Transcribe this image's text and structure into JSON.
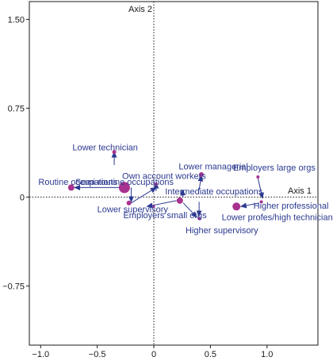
{
  "chart_data": {
    "type": "scatter",
    "title": "",
    "xlabel": "Axis 1",
    "ylabel": "Axis 2",
    "xlim": [
      -1.1,
      1.45
    ],
    "ylim": [
      -1.25,
      1.65
    ],
    "xticks": [
      -1.0,
      -0.5,
      0.0,
      0.5,
      1.0
    ],
    "xtick_labels": [
      "−1.0",
      "−0.5",
      "0",
      "0.5",
      "1.0"
    ],
    "yticks": [
      1.5,
      0.75,
      0,
      -0.75
    ],
    "ytick_labels": [
      "1.50",
      "0.75",
      "0",
      "−0.75"
    ],
    "grid": false,
    "legend": "none",
    "colors": {
      "point": "#a8328f",
      "arrow": "#2b3990",
      "label": "#2b3990",
      "axis": "#1a1a1a"
    },
    "points": [
      {
        "label": "Lower technician",
        "x": -0.35,
        "y": 0.38,
        "size": 2.5,
        "label_xy": [
          -0.43,
          0.42
        ],
        "anchor": "middle"
      },
      {
        "label": "Routine occupations",
        "x": -0.73,
        "y": 0.08,
        "size": 4,
        "label_xy": [
          -1.02,
          0.13
        ],
        "anchor": "start"
      },
      {
        "label": "Semi-routine occupations",
        "x": -0.26,
        "y": 0.08,
        "size": 7,
        "label_xy": [
          -0.26,
          0.13
        ],
        "anchor": "middle"
      },
      {
        "label": "Lower supervisory",
        "x": -0.22,
        "y": -0.05,
        "size": 3,
        "label_xy": [
          -0.5,
          -0.1
        ],
        "anchor": "start"
      },
      {
        "label": "Own account workers",
        "x": 0.02,
        "y": 0.11,
        "size": 2,
        "label_xy": [
          -0.28,
          0.18
        ],
        "anchor": "start"
      },
      {
        "label": "Employers small orgs",
        "x": 0.0,
        "y": -0.08,
        "size": 1.5,
        "label_xy": [
          -0.27,
          -0.15
        ],
        "anchor": "start"
      },
      {
        "label": "Intermediate occupations",
        "x": 0.23,
        "y": -0.03,
        "size": 4,
        "label_xy": [
          0.1,
          0.05
        ],
        "anchor": "start"
      },
      {
        "label": "Lower managerial",
        "x": 0.42,
        "y": 0.19,
        "size": 3,
        "label_xy": [
          0.22,
          0.26
        ],
        "anchor": "start"
      },
      {
        "label": "Higher supervisory",
        "x": 0.4,
        "y": -0.18,
        "size": 2,
        "label_xy": [
          0.28,
          -0.28
        ],
        "anchor": "start"
      },
      {
        "label": "Employers large orgs",
        "x": 0.92,
        "y": 0.17,
        "size": 2,
        "label_xy": [
          0.7,
          0.25
        ],
        "anchor": "start"
      },
      {
        "label": "Higher professional",
        "x": 0.95,
        "y": -0.04,
        "size": 2,
        "label_xy": [
          0.88,
          -0.07
        ],
        "anchor": "start"
      },
      {
        "label": "Lower profes/high technicians",
        "x": 0.73,
        "y": -0.08,
        "size": 5,
        "label_xy": [
          0.6,
          -0.17
        ],
        "anchor": "start"
      }
    ],
    "arrows": [
      {
        "from": [
          -0.35,
          0.27
        ],
        "to": [
          -0.35,
          0.38
        ]
      },
      {
        "from": [
          -0.28,
          0.08
        ],
        "to": [
          -0.7,
          0.08
        ]
      },
      {
        "from": [
          -0.2,
          0.08
        ],
        "to": [
          -0.2,
          -0.04
        ]
      },
      {
        "from": [
          -0.2,
          -0.05
        ],
        "to": [
          0.02,
          0.08
        ]
      },
      {
        "from": [
          0.02,
          0.05
        ],
        "to": [
          0.02,
          0.12
        ]
      },
      {
        "from": [
          0.2,
          -0.03
        ],
        "to": [
          -0.06,
          -0.08
        ]
      },
      {
        "from": [
          0.26,
          0.0
        ],
        "to": [
          0.25,
          0.06
        ]
      },
      {
        "from": [
          0.4,
          0.06
        ],
        "to": [
          0.42,
          0.18
        ]
      },
      {
        "from": [
          0.26,
          -0.05
        ],
        "to": [
          0.38,
          -0.17
        ]
      },
      {
        "from": [
          0.92,
          0.16
        ],
        "to": [
          0.96,
          -0.01
        ]
      },
      {
        "from": [
          0.93,
          -0.05
        ],
        "to": [
          0.77,
          -0.08
        ]
      },
      {
        "from": [
          0.4,
          -0.04
        ],
        "to": [
          0.4,
          -0.16
        ]
      }
    ]
  }
}
